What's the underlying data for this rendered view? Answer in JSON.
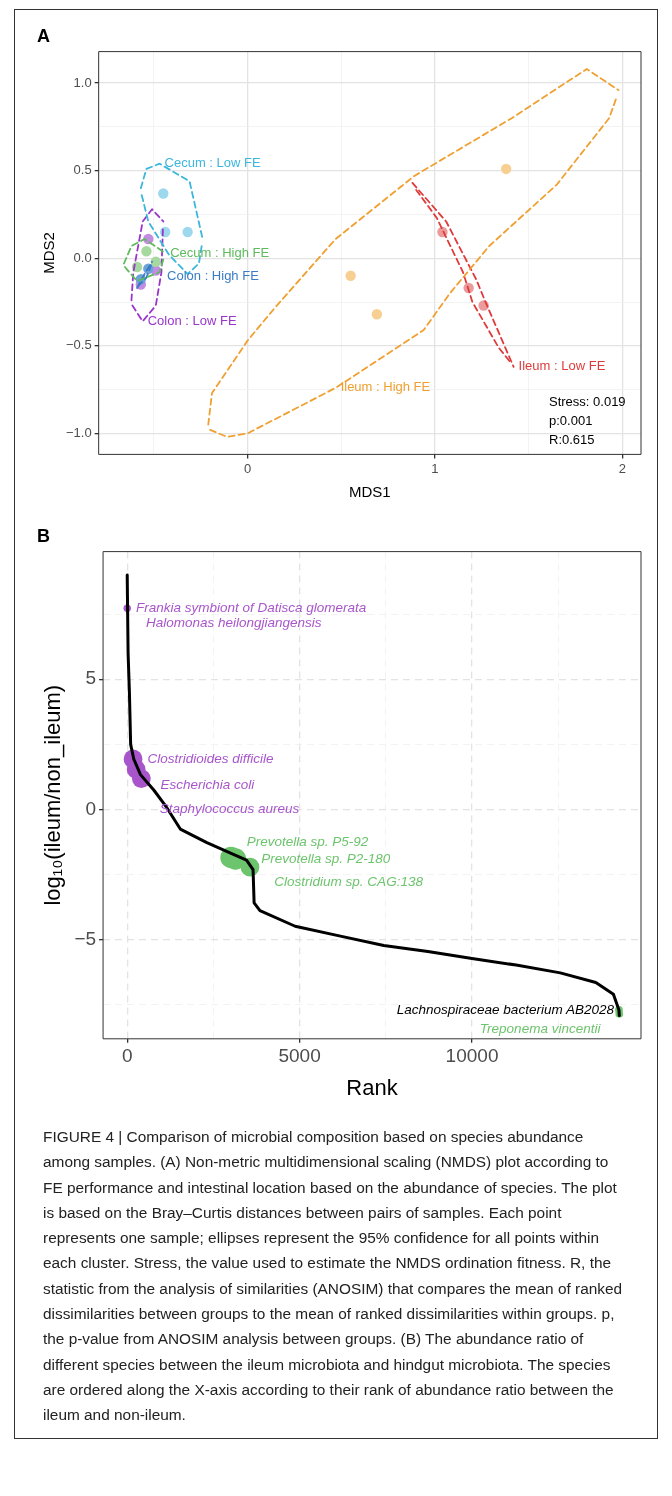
{
  "chart_data": [
    {
      "type": "scatter",
      "title": "A",
      "xlabel": "MDS1",
      "ylabel": "MDS2",
      "xlim": [
        -0.795,
        2.1
      ],
      "ylim": [
        -1.12,
        1.18
      ],
      "xticks": [
        {
          "value": -0.5,
          "label": null
        },
        0,
        {
          "value": 0.5,
          "label": null
        },
        1,
        {
          "value": 1.5,
          "label": null
        },
        2
      ],
      "yticks": [
        {
          "value": -1,
          "label": "−1.0"
        },
        {
          "value": -0.75,
          "label": null
        },
        {
          "value": -0.5,
          "label": "−0.5"
        },
        {
          "value": -0.25,
          "label": null
        },
        {
          "value": 0,
          "label": "0.0"
        },
        {
          "value": 0.25,
          "label": null
        },
        {
          "value": 0.5,
          "label": "0.5"
        },
        {
          "value": 0.75,
          "label": null
        },
        {
          "value": 1,
          "label": "1.0"
        }
      ],
      "grid": true,
      "marker": "circle",
      "series": [
        {
          "type": "scatter",
          "color": "#9dd8ee",
          "x": [
            -0.45,
            -0.44,
            -0.32
          ],
          "values": [
            0.37,
            0.15,
            0.15
          ]
        },
        {
          "type": "scatter",
          "color": "#a6d9a0",
          "x": [
            -0.54,
            -0.59,
            -0.49
          ],
          "values": [
            0.04,
            -0.05,
            -0.02
          ]
        },
        {
          "type": "scatter",
          "color": "#6fa2d9",
          "x": [
            -0.53,
            -0.56,
            -0.57
          ],
          "values": [
            -0.06,
            null,
            -0.12
          ]
        },
        {
          "type": "scatter",
          "color": "#c28de0",
          "x": [
            -0.53,
            -0.49,
            -0.57
          ],
          "values": [
            0.11,
            -0.07,
            -0.15
          ]
        },
        {
          "type": "scatter",
          "color": "#f7cf93",
          "x": [
            1.38,
            0.55,
            0.69
          ],
          "values": [
            0.51,
            -0.1,
            -0.32
          ]
        },
        {
          "type": "scatter",
          "color": "#eb9b9b",
          "x": [
            1.04,
            1.18,
            1.26
          ],
          "values": [
            0.15,
            -0.17,
            -0.27
          ]
        },
        {
          "type": "line",
          "color": "#3bb6dc",
          "line_style": "dashed",
          "marker": "none",
          "x": [
            -0.57,
            -0.54,
            -0.47,
            -0.31,
            -0.24
          ],
          "values": [
            0.4,
            0.51,
            0.54,
            0.44,
            0.11
          ]
        },
        {
          "type": "line",
          "color": "#3bb6dc",
          "line_style": "dashed",
          "marker": "none",
          "x": [
            -0.565,
            -0.53,
            -0.42,
            -0.32,
            -0.26,
            -0.245
          ],
          "values": [
            0.36,
            0.21,
            0.02,
            -0.09,
            -0.03,
            0.07
          ]
        },
        {
          "type": "line",
          "color": "#5dbb5d",
          "line_style": "dashed",
          "marker": "none",
          "x": [
            -0.66,
            -0.62,
            -0.55,
            -0.44
          ],
          "values": [
            -0.03,
            0.07,
            0.11,
            0.03
          ]
        },
        {
          "type": "line",
          "color": "#5dbb5d",
          "line_style": "dashed",
          "marker": "none",
          "x": [
            -0.655,
            -0.59,
            -0.47,
            -0.445
          ],
          "values": [
            -0.05,
            -0.13,
            -0.08,
            0.01
          ]
        },
        {
          "type": "line",
          "color": "#3a7cc4",
          "line_style": "dashed",
          "marker": "none",
          "x": [
            -0.59,
            -0.55,
            -0.51
          ],
          "values": [
            -0.17,
            -0.09,
            -0.02
          ]
        },
        {
          "type": "line",
          "color": "#3a7cc4",
          "line_style": "dashed",
          "marker": "none",
          "x": [
            -0.585,
            -0.54,
            -0.515
          ],
          "values": [
            -0.16,
            -0.11,
            -0.04
          ]
        },
        {
          "type": "line",
          "color": "#9a35cc",
          "line_style": "dashed",
          "marker": "none",
          "x": [
            -0.62,
            -0.61,
            -0.56,
            -0.51,
            -0.45
          ],
          "values": [
            -0.24,
            -0.08,
            0.21,
            0.28,
            0.21
          ]
        },
        {
          "type": "line",
          "color": "#9a35cc",
          "line_style": "dashed",
          "marker": "none",
          "x": [
            -0.615,
            -0.56,
            -0.49,
            -0.46,
            -0.452
          ],
          "values": [
            -0.27,
            -0.36,
            -0.27,
            -0.08,
            0.17
          ]
        },
        {
          "type": "line",
          "color": "#f0a030",
          "line_style": "dashed",
          "marker": "none",
          "x": [
            -0.21,
            -0.19,
            0,
            0.14,
            0.47,
            0.89,
            1.41,
            1.81,
            1.98
          ],
          "values": [
            -0.95,
            -0.77,
            -0.47,
            -0.29,
            0.11,
            0.47,
            0.8,
            1.08,
            0.96
          ]
        },
        {
          "type": "line",
          "color": "#f0a030",
          "line_style": "dashed",
          "marker": "none",
          "x": [
            -0.2,
            -0.11,
            0,
            0.47,
            0.94,
            1.08,
            1.29,
            1.65,
            1.93,
            1.97
          ],
          "values": [
            -0.98,
            -1.02,
            -1.0,
            -0.74,
            -0.41,
            -0.2,
            0.07,
            0.42,
            0.8,
            0.92
          ]
        },
        {
          "type": "line",
          "color": "#df3b3b",
          "line_style": "dashed",
          "marker": "none",
          "x": [
            0.88,
            1.06,
            1.22,
            1.27,
            1.42
          ],
          "values": [
            0.43,
            0.21,
            -0.12,
            -0.25,
            -0.62
          ]
        },
        {
          "type": "line",
          "color": "#df3b3b",
          "line_style": "dashed",
          "marker": "none",
          "x": [
            0.9,
            1.01,
            1.15,
            1.2,
            1.34,
            1.4
          ],
          "values": [
            0.39,
            0.23,
            -0.08,
            -0.25,
            -0.51,
            -0.59
          ]
        }
      ],
      "annotations": [
        {
          "text": "Cecum : Low FE",
          "x": -0.47,
          "y": 0.54
        },
        {
          "text": "Cecum : High FE",
          "x": -0.44,
          "y": 0.03
        },
        {
          "text": "Colon : High FE",
          "x": -0.51,
          "y": -0.02
        },
        {
          "text": "Colon : Low FE",
          "x": -0.56,
          "y": -0.36
        },
        {
          "text": "Ileum : High FE",
          "x": 0.47,
          "y": -0.74
        },
        {
          "text": "Ileum : Low FE",
          "x": 1.42,
          "y": -0.62
        },
        "Stress: 0.019",
        "p:0.001",
        "R:0.615"
      ]
    },
    {
      "type": "line",
      "title": "B",
      "xlabel": "Rank",
      "ylabel": "log₁₀(ileum/non_ileum)",
      "xlim": [
        -700,
        14900
      ],
      "ylim": [
        -8.8,
        9.9
      ],
      "xticks": [
        0,
        {
          "value": 2500,
          "label": null
        },
        5000,
        {
          "value": 7500,
          "label": null
        },
        10000,
        {
          "value": 12500,
          "label": null
        }
      ],
      "yticks": [
        {
          "value": -7.5,
          "label": null
        },
        {
          "value": -5,
          "label": "−5"
        },
        {
          "value": -2.5,
          "label": null
        },
        0,
        {
          "value": 2.5,
          "label": null
        },
        5,
        {
          "value": 7.5,
          "label": null
        }
      ],
      "grid": true,
      "series": [
        {
          "type": "line",
          "color": "#000000",
          "marker": "none",
          "x": [
            0,
            26,
            64,
            100,
            190,
            385,
            770,
            1150,
            1540,
            2310,
            3080,
            3460,
            3650,
            3680,
            3850,
            4870,
            6150,
            7440,
            8720,
            10000,
            11280,
            12560,
            13590,
            14100,
            14260,
            14270
          ],
          "values": [
            9.0,
            6.0,
            4.5,
            2.5,
            1.94,
            1.34,
            0.75,
            0.07,
            -0.75,
            -1.27,
            -1.72,
            -1.94,
            -2.31,
            -3.58,
            -3.88,
            -4.48,
            -4.85,
            -5.22,
            -5.45,
            -5.72,
            -5.97,
            -6.27,
            -6.64,
            -7.09,
            -7.69,
            -7.91
          ]
        },
        {
          "type": "bubble",
          "color": "#a855cc",
          "x": [
            0,
            170,
            260,
            410
          ],
          "values": [
            7.73,
            1.94,
            1.54,
            1.19
          ],
          "sizes": [
            0.12,
            0.77,
            0.77,
            0.77
          ]
        },
        {
          "type": "bubble",
          "color": "#6cc46c",
          "x": [
            3010,
            3140,
            3560,
            14260,
            14270
          ],
          "values": [
            -1.84,
            -1.9,
            -2.21,
            -7.69,
            -7.84
          ],
          "sizes": [
            1,
            1,
            0.77,
            0.13,
            0.13
          ]
        }
      ],
      "annotations": [
        {
          "text": "Frankia symbiont of Datisca glomerata",
          "x": 0,
          "y": 7.73
        },
        {
          "text": "Halomonas heilongjiangensis",
          "x": 0,
          "y": 7.73
        },
        {
          "text": "Clostridioides difficile",
          "x": 170,
          "y": 1.94
        },
        {
          "text": "Escherichia coli",
          "x": 260,
          "y": 1.54
        },
        {
          "text": "Staphylococcus aureus",
          "x": 410,
          "y": 1.19
        },
        {
          "text": "Prevotella sp. P5-92",
          "x": 3010,
          "y": -1.84
        },
        {
          "text": "Prevotella sp. P2-180",
          "x": 3140,
          "y": -1.9
        },
        {
          "text": "Clostridium sp. CAG:138",
          "x": 3560,
          "y": -2.21
        },
        {
          "text": "Lachnospiraceae bacterium AB2028",
          "x": 14260,
          "y": -7.69
        },
        {
          "text": "Treponema vincentii",
          "x": 14270,
          "y": -7.84
        }
      ]
    },
    {
      "type": "other",
      "annotations": [
        "FIGURE 4 | Comparison of microbial composition based on species abundance among samples. (A) Non-metric multidimensional scaling (NMDS) plot according to FE performance and intestinal location based on the abundance of species. The plot is based on the Bray–Curtis distances between pairs of samples. Each point represents one sample; ellipses represent the 95% confidence for all points within each cluster. Stress, the value used to estimate the NMDS ordination fitness. R, the statistic from the analysis of similarities (ANOSIM) that compares the mean of ranked dissimilarities between groups to the mean of ranked dissimilarities within groups. p, the p-value from ANOSIM analysis between groups. (B) The abundance ratio of different species between the ileum microbiota and hindgut microbiota. The species are ordered along the X-axis according to their rank of abundance ratio between the ileum and non-ileum."
      ]
    }
  ]
}
